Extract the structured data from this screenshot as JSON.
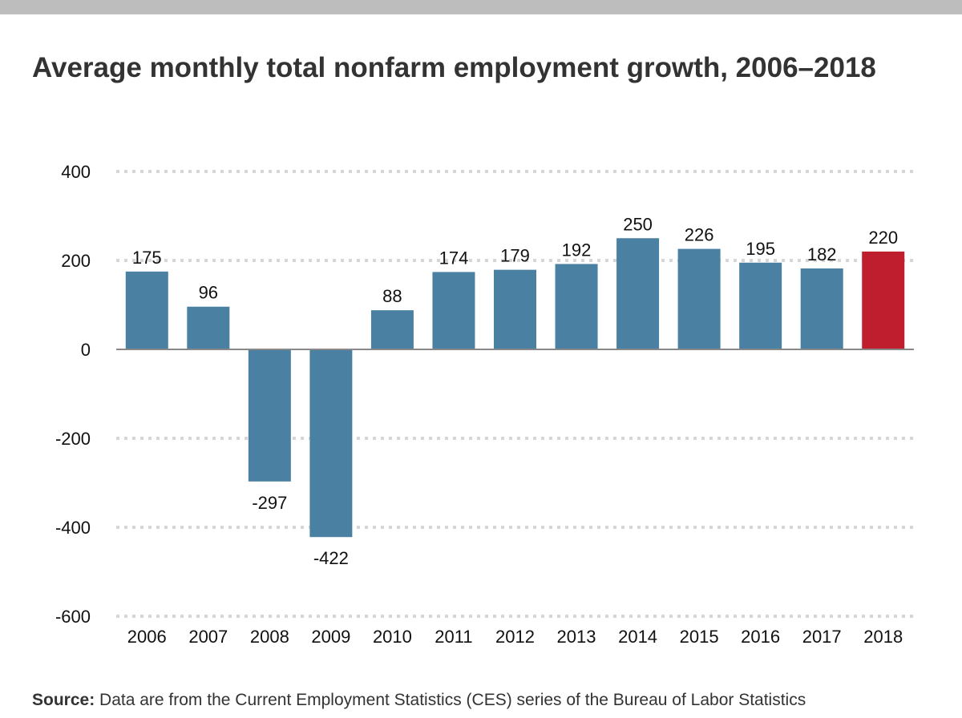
{
  "title": "Average monthly total nonfarm employment growth, 2006–2018",
  "source": {
    "label": "Source:",
    "text": "Data are from the Current Employment Statistics (CES) series of the Bureau of Labor Statistics"
  },
  "colors": {
    "bar": "#4a81a3",
    "highlight": "#be1e2d",
    "grid": "#d6d6d6",
    "zero_line": "#888888",
    "top_bar": "#bdbdbd"
  },
  "chart_data": {
    "type": "bar",
    "title": "Average monthly total nonfarm employment growth, 2006–2018",
    "categories": [
      "2006",
      "2007",
      "2008",
      "2009",
      "2010",
      "2011",
      "2012",
      "2013",
      "2014",
      "2015",
      "2016",
      "2017",
      "2018"
    ],
    "values": [
      175,
      96,
      -297,
      -422,
      88,
      174,
      179,
      192,
      250,
      226,
      195,
      182,
      220
    ],
    "highlight_category": "2018",
    "xlabel": "",
    "ylabel": "",
    "ylim": [
      -600,
      400
    ],
    "yticks": [
      400,
      200,
      0,
      -200,
      -400,
      -600
    ],
    "grid": true,
    "grid_style": "dotted",
    "legend": "none"
  }
}
